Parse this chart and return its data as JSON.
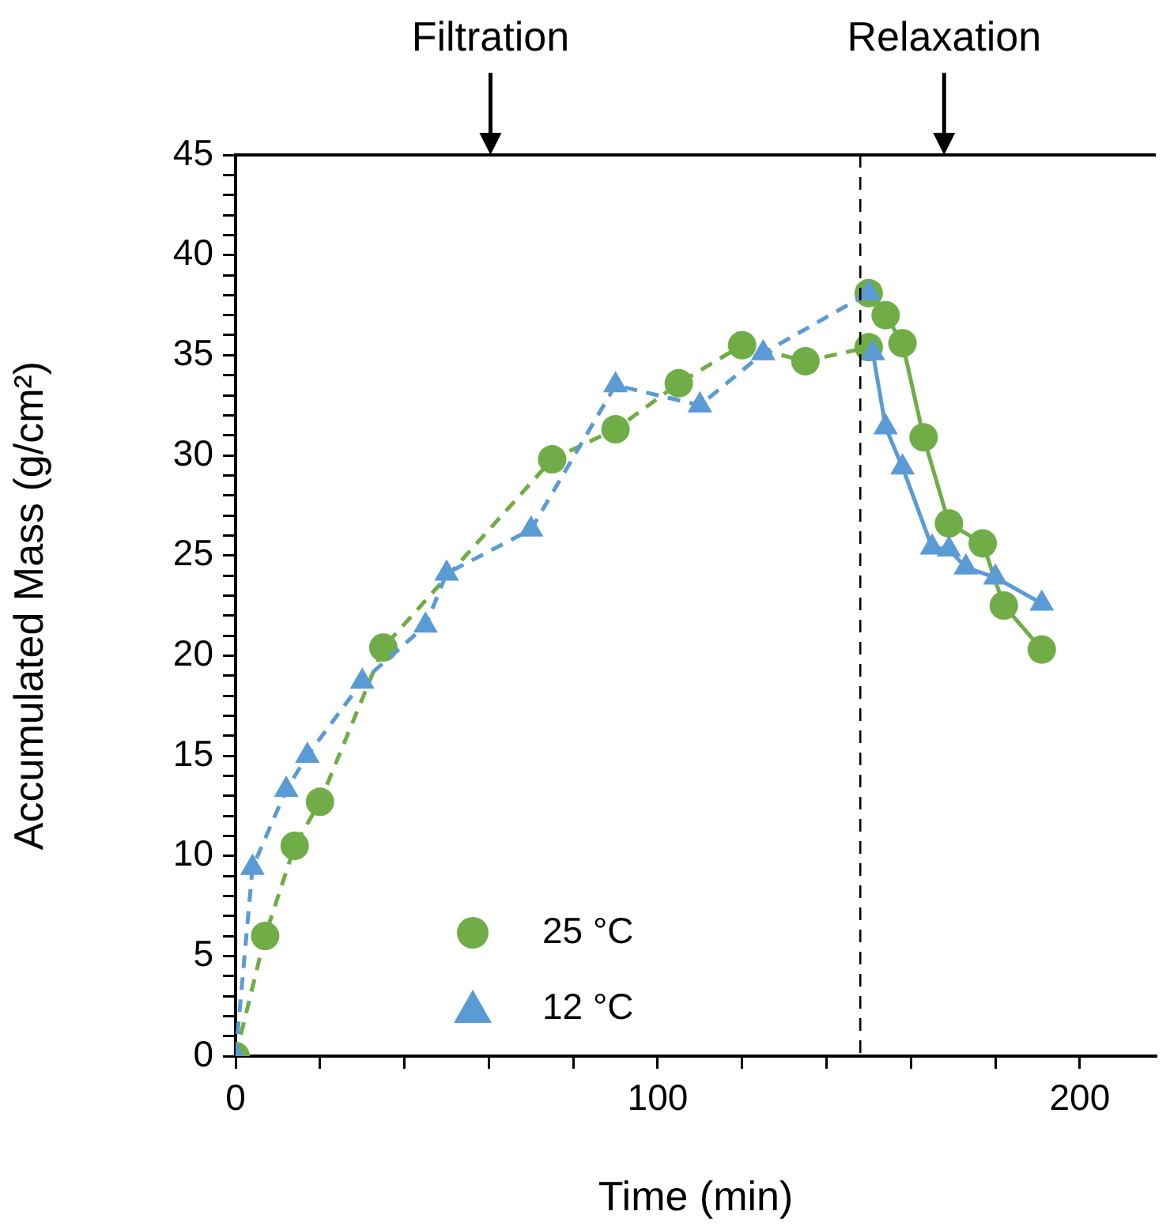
{
  "chart_data": {
    "type": "line",
    "xlabel": "Time (min)",
    "ylabel": "Accumulated Mass (g/cm²)",
    "xlim": [
      0,
      218
    ],
    "xticks": [
      0,
      {
        "value": 20,
        "label": null
      },
      {
        "value": 40,
        "label": null
      },
      {
        "value": 60,
        "label": null
      },
      {
        "value": 80,
        "label": null
      },
      100,
      {
        "value": 120,
        "label": null
      },
      {
        "value": 140,
        "label": null
      },
      {
        "value": 160,
        "label": null
      },
      {
        "value": 180,
        "label": null
      },
      200
    ],
    "ylim": [
      0,
      45
    ],
    "yticks": [
      0,
      {
        "value": 1,
        "label": null
      },
      {
        "value": 2,
        "label": null
      },
      {
        "value": 3,
        "label": null
      },
      {
        "value": 4,
        "label": null
      },
      5,
      {
        "value": 6,
        "label": null
      },
      {
        "value": 7,
        "label": null
      },
      {
        "value": 8,
        "label": null
      },
      {
        "value": 9,
        "label": null
      },
      10,
      {
        "value": 11,
        "label": null
      },
      {
        "value": 12,
        "label": null
      },
      {
        "value": 13,
        "label": null
      },
      {
        "value": 14,
        "label": null
      },
      15,
      {
        "value": 16,
        "label": null
      },
      {
        "value": 17,
        "label": null
      },
      {
        "value": 18,
        "label": null
      },
      {
        "value": 19,
        "label": null
      },
      20,
      {
        "value": 21,
        "label": null
      },
      {
        "value": 22,
        "label": null
      },
      {
        "value": 23,
        "label": null
      },
      {
        "value": 24,
        "label": null
      },
      25,
      {
        "value": 26,
        "label": null
      },
      {
        "value": 27,
        "label": null
      },
      {
        "value": 28,
        "label": null
      },
      {
        "value": 29,
        "label": null
      },
      30,
      {
        "value": 31,
        "label": null
      },
      {
        "value": 32,
        "label": null
      },
      {
        "value": 33,
        "label": null
      },
      {
        "value": 34,
        "label": null
      },
      35,
      {
        "value": 36,
        "label": null
      },
      {
        "value": 37,
        "label": null
      },
      {
        "value": 38,
        "label": null
      },
      {
        "value": 39,
        "label": null
      },
      40,
      {
        "value": 41,
        "label": null
      },
      {
        "value": 42,
        "label": null
      },
      {
        "value": 43,
        "label": null
      },
      {
        "value": 44,
        "label": null
      },
      45
    ],
    "grid": false,
    "legend": "bottom",
    "series": [
      {
        "name": "25 °C",
        "color": "#70ad47",
        "marker": "circle",
        "line_style": "dashed",
        "x": [
          0,
          7,
          14,
          20,
          35,
          75,
          90,
          105,
          120,
          135,
          150
        ],
        "values": [
          0,
          6,
          10.5,
          12.7,
          20.4,
          29.8,
          31.3,
          33.6,
          35.5,
          34.7,
          35.4
        ]
      },
      {
        "color": "#70ad47",
        "marker": "circle",
        "line_style": "solid",
        "x": [
          150,
          154,
          158,
          163,
          169,
          177,
          182,
          191
        ],
        "values": [
          38.1,
          37,
          35.6,
          30.9,
          26.6,
          25.6,
          22.5,
          20.3
        ]
      },
      {
        "name": "12 °C",
        "color": "#5b9bd5",
        "marker": "triangle",
        "line_style": "dashed",
        "x": [
          0,
          4,
          12,
          17,
          30,
          45,
          50,
          70,
          90,
          110,
          125,
          150
        ],
        "values": [
          0,
          9.4,
          13.3,
          15,
          18.7,
          21.5,
          24.1,
          26.3,
          33.5,
          32.5,
          35.1,
          38.1
        ]
      },
      {
        "color": "#5b9bd5",
        "marker": "triangle",
        "line_style": "solid",
        "x": [
          151,
          154,
          158,
          165,
          169,
          173,
          180,
          191
        ],
        "values": [
          35.1,
          31.4,
          29.4,
          25.4,
          25.3,
          24.4,
          23.9,
          22.6
        ]
      }
    ],
    "ref_lines": [
      {
        "axis": "x",
        "value": 148,
        "color": "#000000",
        "line_style": "dashed"
      }
    ],
    "annotations": [
      "Filtration",
      "Relaxation"
    ]
  }
}
